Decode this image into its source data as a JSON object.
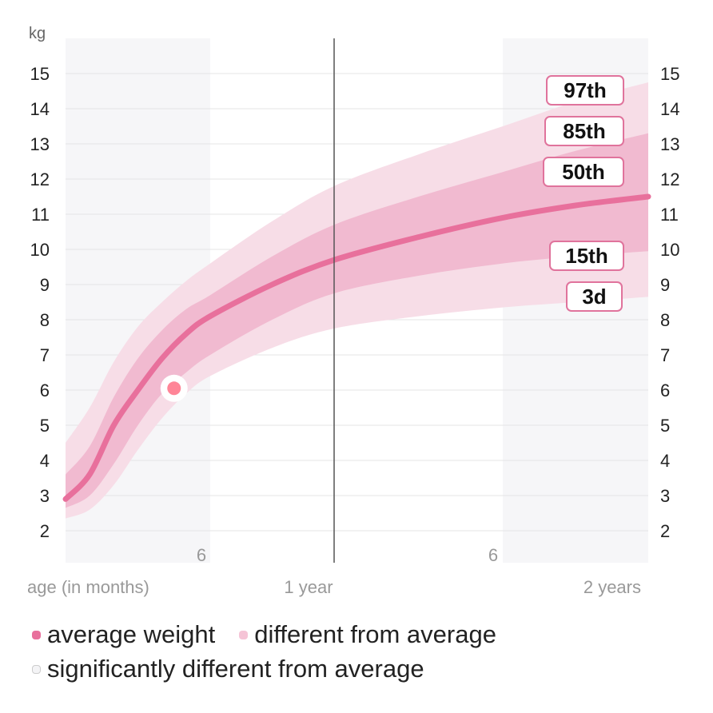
{
  "chart_data": {
    "type": "area",
    "yunit": "kg",
    "xlabel": "age (in months)",
    "ylim": [
      2,
      15
    ],
    "xlim_months": [
      0,
      24
    ],
    "yticks": [
      2,
      3,
      4,
      5,
      6,
      7,
      8,
      9,
      10,
      11,
      12,
      13,
      14,
      15
    ],
    "xtick_labels": [
      {
        "months": 6,
        "label": "6"
      },
      {
        "months": 12,
        "label": "1 year"
      },
      {
        "months": 18,
        "label": "6"
      },
      {
        "months": 24,
        "label": "2 years"
      }
    ],
    "grid": true,
    "shaded_periods_months": [
      [
        0,
        6
      ],
      [
        18,
        24
      ]
    ],
    "x_months": [
      0,
      1,
      2,
      3,
      4,
      5,
      6,
      9,
      12,
      15,
      18,
      21,
      24
    ],
    "percentiles": {
      "p97": [
        4.5,
        5.5,
        6.8,
        7.8,
        8.5,
        9.1,
        9.6,
        10.8,
        11.8,
        12.7,
        13.5,
        14.2,
        14.75
      ],
      "p85": [
        3.6,
        4.4,
        5.8,
        6.9,
        7.7,
        8.3,
        8.7,
        9.8,
        10.7,
        11.5,
        12.2,
        12.8,
        13.3
      ],
      "p50": [
        2.9,
        3.6,
        5.0,
        6.0,
        6.9,
        7.6,
        8.1,
        9.0,
        9.7,
        10.35,
        10.9,
        11.25,
        11.5
      ],
      "p15": [
        2.65,
        3.0,
        3.9,
        5.0,
        5.9,
        6.5,
        7.0,
        8.0,
        8.75,
        9.25,
        9.6,
        9.8,
        9.95
      ],
      "p3": [
        2.35,
        2.6,
        3.3,
        4.3,
        5.2,
        5.9,
        6.4,
        7.2,
        7.75,
        8.1,
        8.35,
        8.5,
        8.65
      ]
    },
    "percentile_labels": {
      "p97": "97th",
      "p85": "85th",
      "p50": "50th",
      "p15": "15th",
      "p3": "3d"
    },
    "measurement": {
      "months": 4.5,
      "kg": 6.05
    },
    "colors": {
      "average": "#e8709c",
      "different": "#f1bad0",
      "significant": "#f7dde7",
      "shaded_period": "#f6f6f8",
      "point": "#ff8597",
      "label_border": "#e0739c"
    }
  },
  "legend": {
    "average": "average weight",
    "different": "different from average",
    "significant": "significantly different from average"
  }
}
